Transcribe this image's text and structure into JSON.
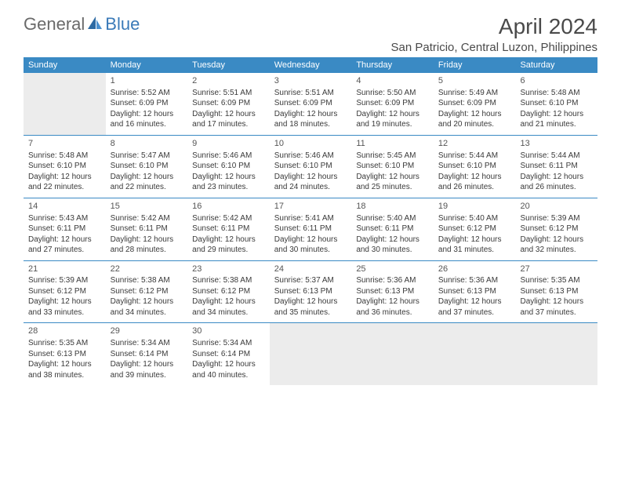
{
  "logo": {
    "general": "General",
    "blue": "Blue"
  },
  "title": "April 2024",
  "location": "San Patricio, Central Luzon, Philippines",
  "colors": {
    "header_bar": "#3a8ac4",
    "header_text": "#ffffff",
    "empty_cell": "#ececec",
    "border": "#3a8ac4",
    "body_text": "#3a3a3a",
    "logo_gray": "#6a6a6a",
    "logo_blue": "#3a7ab8"
  },
  "weekdays": [
    "Sunday",
    "Monday",
    "Tuesday",
    "Wednesday",
    "Thursday",
    "Friday",
    "Saturday"
  ],
  "weeks": [
    [
      {
        "empty": true
      },
      {
        "num": "1",
        "sunrise": "Sunrise: 5:52 AM",
        "sunset": "Sunset: 6:09 PM",
        "dl1": "Daylight: 12 hours",
        "dl2": "and 16 minutes."
      },
      {
        "num": "2",
        "sunrise": "Sunrise: 5:51 AM",
        "sunset": "Sunset: 6:09 PM",
        "dl1": "Daylight: 12 hours",
        "dl2": "and 17 minutes."
      },
      {
        "num": "3",
        "sunrise": "Sunrise: 5:51 AM",
        "sunset": "Sunset: 6:09 PM",
        "dl1": "Daylight: 12 hours",
        "dl2": "and 18 minutes."
      },
      {
        "num": "4",
        "sunrise": "Sunrise: 5:50 AM",
        "sunset": "Sunset: 6:09 PM",
        "dl1": "Daylight: 12 hours",
        "dl2": "and 19 minutes."
      },
      {
        "num": "5",
        "sunrise": "Sunrise: 5:49 AM",
        "sunset": "Sunset: 6:09 PM",
        "dl1": "Daylight: 12 hours",
        "dl2": "and 20 minutes."
      },
      {
        "num": "6",
        "sunrise": "Sunrise: 5:48 AM",
        "sunset": "Sunset: 6:10 PM",
        "dl1": "Daylight: 12 hours",
        "dl2": "and 21 minutes."
      }
    ],
    [
      {
        "num": "7",
        "sunrise": "Sunrise: 5:48 AM",
        "sunset": "Sunset: 6:10 PM",
        "dl1": "Daylight: 12 hours",
        "dl2": "and 22 minutes."
      },
      {
        "num": "8",
        "sunrise": "Sunrise: 5:47 AM",
        "sunset": "Sunset: 6:10 PM",
        "dl1": "Daylight: 12 hours",
        "dl2": "and 22 minutes."
      },
      {
        "num": "9",
        "sunrise": "Sunrise: 5:46 AM",
        "sunset": "Sunset: 6:10 PM",
        "dl1": "Daylight: 12 hours",
        "dl2": "and 23 minutes."
      },
      {
        "num": "10",
        "sunrise": "Sunrise: 5:46 AM",
        "sunset": "Sunset: 6:10 PM",
        "dl1": "Daylight: 12 hours",
        "dl2": "and 24 minutes."
      },
      {
        "num": "11",
        "sunrise": "Sunrise: 5:45 AM",
        "sunset": "Sunset: 6:10 PM",
        "dl1": "Daylight: 12 hours",
        "dl2": "and 25 minutes."
      },
      {
        "num": "12",
        "sunrise": "Sunrise: 5:44 AM",
        "sunset": "Sunset: 6:10 PM",
        "dl1": "Daylight: 12 hours",
        "dl2": "and 26 minutes."
      },
      {
        "num": "13",
        "sunrise": "Sunrise: 5:44 AM",
        "sunset": "Sunset: 6:11 PM",
        "dl1": "Daylight: 12 hours",
        "dl2": "and 26 minutes."
      }
    ],
    [
      {
        "num": "14",
        "sunrise": "Sunrise: 5:43 AM",
        "sunset": "Sunset: 6:11 PM",
        "dl1": "Daylight: 12 hours",
        "dl2": "and 27 minutes."
      },
      {
        "num": "15",
        "sunrise": "Sunrise: 5:42 AM",
        "sunset": "Sunset: 6:11 PM",
        "dl1": "Daylight: 12 hours",
        "dl2": "and 28 minutes."
      },
      {
        "num": "16",
        "sunrise": "Sunrise: 5:42 AM",
        "sunset": "Sunset: 6:11 PM",
        "dl1": "Daylight: 12 hours",
        "dl2": "and 29 minutes."
      },
      {
        "num": "17",
        "sunrise": "Sunrise: 5:41 AM",
        "sunset": "Sunset: 6:11 PM",
        "dl1": "Daylight: 12 hours",
        "dl2": "and 30 minutes."
      },
      {
        "num": "18",
        "sunrise": "Sunrise: 5:40 AM",
        "sunset": "Sunset: 6:11 PM",
        "dl1": "Daylight: 12 hours",
        "dl2": "and 30 minutes."
      },
      {
        "num": "19",
        "sunrise": "Sunrise: 5:40 AM",
        "sunset": "Sunset: 6:12 PM",
        "dl1": "Daylight: 12 hours",
        "dl2": "and 31 minutes."
      },
      {
        "num": "20",
        "sunrise": "Sunrise: 5:39 AM",
        "sunset": "Sunset: 6:12 PM",
        "dl1": "Daylight: 12 hours",
        "dl2": "and 32 minutes."
      }
    ],
    [
      {
        "num": "21",
        "sunrise": "Sunrise: 5:39 AM",
        "sunset": "Sunset: 6:12 PM",
        "dl1": "Daylight: 12 hours",
        "dl2": "and 33 minutes."
      },
      {
        "num": "22",
        "sunrise": "Sunrise: 5:38 AM",
        "sunset": "Sunset: 6:12 PM",
        "dl1": "Daylight: 12 hours",
        "dl2": "and 34 minutes."
      },
      {
        "num": "23",
        "sunrise": "Sunrise: 5:38 AM",
        "sunset": "Sunset: 6:12 PM",
        "dl1": "Daylight: 12 hours",
        "dl2": "and 34 minutes."
      },
      {
        "num": "24",
        "sunrise": "Sunrise: 5:37 AM",
        "sunset": "Sunset: 6:13 PM",
        "dl1": "Daylight: 12 hours",
        "dl2": "and 35 minutes."
      },
      {
        "num": "25",
        "sunrise": "Sunrise: 5:36 AM",
        "sunset": "Sunset: 6:13 PM",
        "dl1": "Daylight: 12 hours",
        "dl2": "and 36 minutes."
      },
      {
        "num": "26",
        "sunrise": "Sunrise: 5:36 AM",
        "sunset": "Sunset: 6:13 PM",
        "dl1": "Daylight: 12 hours",
        "dl2": "and 37 minutes."
      },
      {
        "num": "27",
        "sunrise": "Sunrise: 5:35 AM",
        "sunset": "Sunset: 6:13 PM",
        "dl1": "Daylight: 12 hours",
        "dl2": "and 37 minutes."
      }
    ],
    [
      {
        "num": "28",
        "sunrise": "Sunrise: 5:35 AM",
        "sunset": "Sunset: 6:13 PM",
        "dl1": "Daylight: 12 hours",
        "dl2": "and 38 minutes."
      },
      {
        "num": "29",
        "sunrise": "Sunrise: 5:34 AM",
        "sunset": "Sunset: 6:14 PM",
        "dl1": "Daylight: 12 hours",
        "dl2": "and 39 minutes."
      },
      {
        "num": "30",
        "sunrise": "Sunrise: 5:34 AM",
        "sunset": "Sunset: 6:14 PM",
        "dl1": "Daylight: 12 hours",
        "dl2": "and 40 minutes."
      },
      {
        "empty": true
      },
      {
        "empty": true
      },
      {
        "empty": true
      },
      {
        "empty": true
      }
    ]
  ]
}
